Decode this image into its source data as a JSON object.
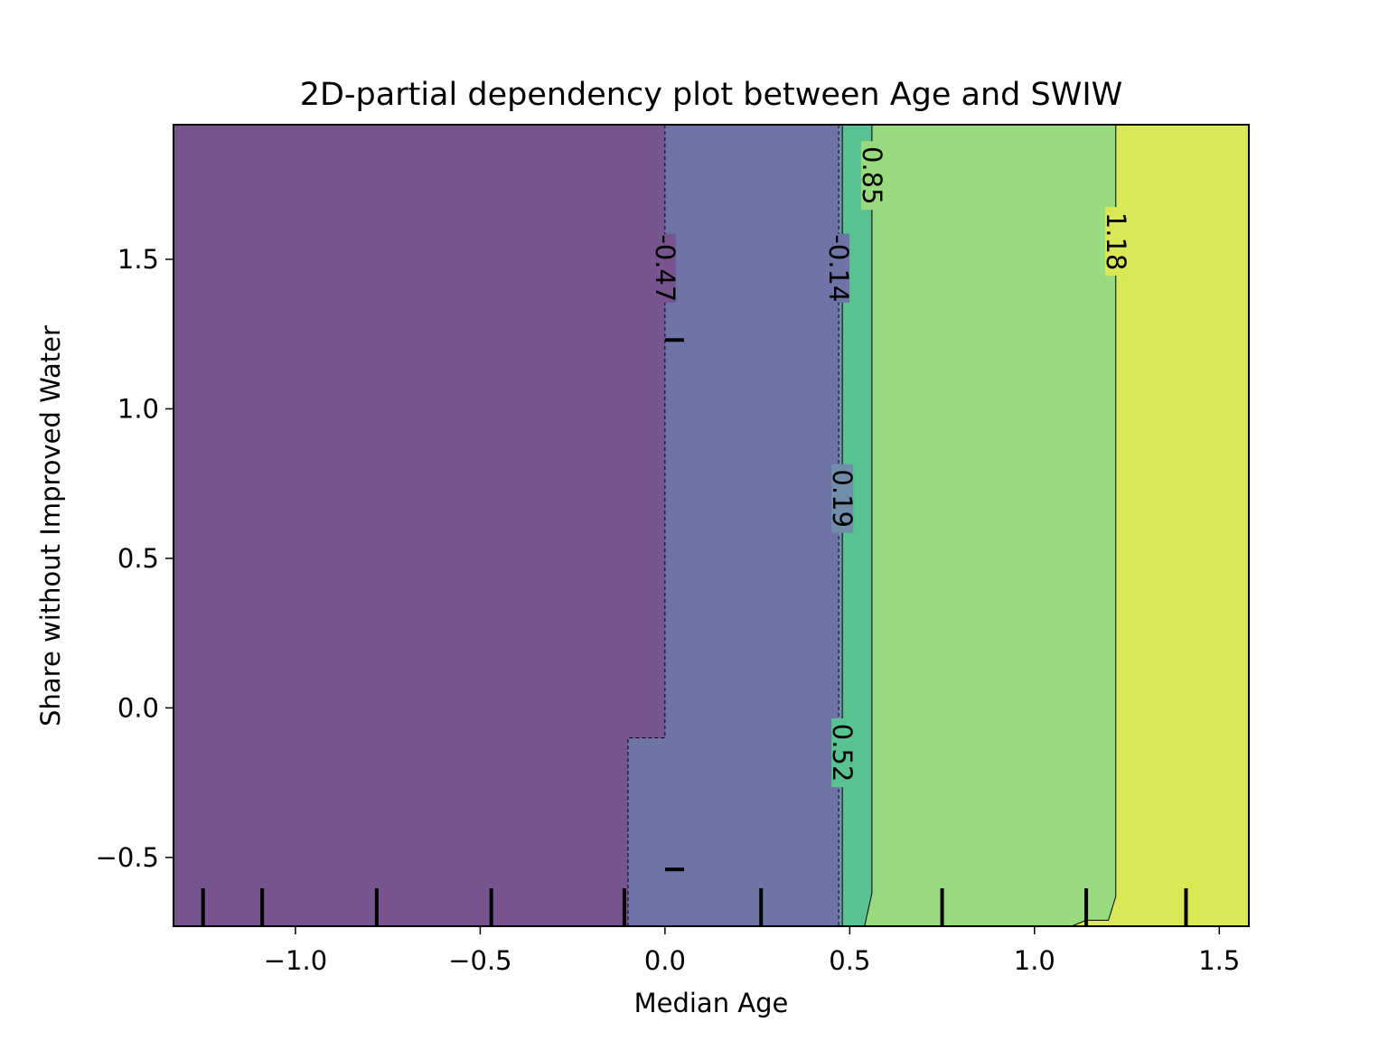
{
  "chart_data": {
    "type": "contour",
    "title": "2D-partial dependency plot between Age and SWIW",
    "xlabel": "Median Age",
    "ylabel": "Share without Improved Water",
    "xlim": [
      -1.33,
      1.58
    ],
    "ylim": [
      -0.73,
      1.95
    ],
    "x_ticks": [
      -1.0,
      -0.5,
      0.0,
      0.5,
      1.0,
      1.5
    ],
    "x_tick_labels": [
      "−1.0",
      "−0.5",
      "0.0",
      "0.5",
      "1.0",
      "1.5"
    ],
    "y_ticks": [
      -0.5,
      0.0,
      0.5,
      1.0,
      1.5
    ],
    "y_tick_labels": [
      "−0.5",
      "0.0",
      "0.5",
      "1.0",
      "1.5"
    ],
    "contour_levels": [
      -0.47,
      -0.14,
      0.19,
      0.52,
      0.85,
      1.18
    ],
    "contour_labels": [
      "-0.47",
      "-0.14",
      "0.19",
      "0.52",
      "0.85",
      "1.18"
    ],
    "regions": [
      {
        "color": "#76558f",
        "x_boundary": [
          [
            1.95,
            0.0
          ],
          [
            -0.1,
            0.0
          ],
          [
            -0.1,
            -0.1
          ],
          [
            -0.73,
            -0.1
          ]
        ]
      },
      {
        "color": "#6e74a5",
        "x_boundary": [
          [
            1.95,
            0.47
          ],
          [
            -0.73,
            0.47
          ]
        ]
      },
      {
        "color": "#718daa",
        "x_boundary": [
          [
            1.95,
            0.48
          ],
          [
            -0.73,
            0.48
          ]
        ]
      },
      {
        "color": "#5ac191",
        "x_boundary": [
          [
            1.95,
            0.56
          ],
          [
            -0.62,
            0.56
          ],
          [
            -0.73,
            0.54
          ]
        ]
      },
      {
        "color": "#97db7e",
        "x_boundary": [
          [
            1.95,
            1.22
          ],
          [
            -0.63,
            1.22
          ],
          [
            -0.71,
            1.2
          ],
          [
            -0.71,
            1.14
          ],
          [
            -0.73,
            1.1
          ]
        ]
      },
      {
        "color": "#dae756",
        "x_boundary": [
          [
            1.95,
            1.58
          ],
          [
            -0.73,
            1.58
          ]
        ]
      }
    ],
    "rug_x": [
      -1.25,
      -1.09,
      -0.78,
      -0.47,
      -0.11,
      0.26,
      0.75,
      1.14,
      1.41
    ],
    "rug_y": [
      1.23,
      -0.54
    ]
  }
}
